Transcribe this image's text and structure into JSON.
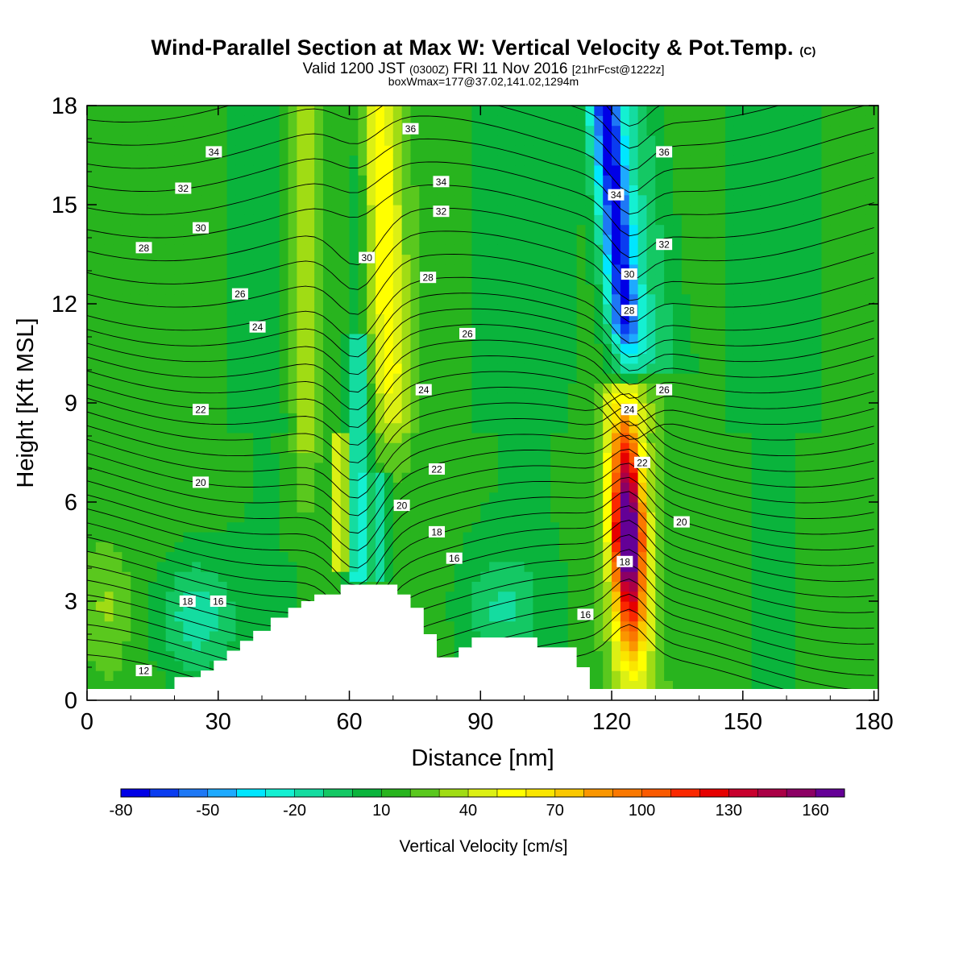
{
  "header": {
    "title": "Wind-Parallel Section at Max W: Vertical Velocity & Pot.Temp.",
    "copyright": "(C)",
    "valid_prefix": "Valid 1200 JST",
    "valid_utc": "(0300Z)",
    "valid_date": "FRI 11 Nov 2016",
    "valid_fcst": "[21hrFcst@1222z]",
    "box_info": "boxWmax=177@37.02,141.02,1294m"
  },
  "chart_data": {
    "type": "heatmap",
    "title": "Wind-Parallel Section at Max W: Vertical Velocity & Pot.Temp.",
    "xlabel": "Distance [nm]",
    "ylabel": "Height [Kft MSL]",
    "xlim": [
      0,
      181
    ],
    "ylim": [
      0,
      18
    ],
    "x_ticks": [
      "0",
      "30",
      "60",
      "90",
      "120",
      "150",
      "180"
    ],
    "y_ticks": [
      "0",
      "3",
      "6",
      "9",
      "12",
      "15",
      "18"
    ],
    "colorbar": {
      "title": "Vertical Velocity [cm/s]",
      "min": -80,
      "max": 180,
      "step": 10,
      "tick_labels": [
        "-80",
        "-50",
        "-20",
        "10",
        "40",
        "70",
        "100",
        "130",
        "160"
      ],
      "colors": [
        "#0000e6",
        "#0a3cf0",
        "#1e78f5",
        "#1eaaff",
        "#00e6ff",
        "#14f0d2",
        "#14dca0",
        "#14c864",
        "#0ab43c",
        "#28b41e",
        "#5ac81e",
        "#a0dc14",
        "#dcf014",
        "#ffff00",
        "#fae600",
        "#fac800",
        "#fa9600",
        "#fa7800",
        "#fa5a00",
        "#fa2800",
        "#e60000",
        "#c8002d",
        "#aa0046",
        "#8c0064",
        "#640096"
      ]
    },
    "vertical_velocity_features": [
      {
        "x": 50,
        "ymin": 9,
        "ymax": 18,
        "w_cms": 40
      },
      {
        "x": 69,
        "ymin": 11,
        "ymax": 18,
        "w_cms": 50
      },
      {
        "x": 62,
        "ymin": 4,
        "ymax": 11,
        "w_cms": -30
      },
      {
        "x": 58,
        "ymin": 4,
        "ymax": 8,
        "w_cms": 60
      },
      {
        "x": 124,
        "ymin": 1,
        "ymax": 9,
        "w_cms": 177
      },
      {
        "x": 122,
        "ymin": 10,
        "ymax": 18,
        "w_cms": -60
      }
    ],
    "theta_contours_c": [
      "12",
      "16",
      "18",
      "20",
      "22",
      "24",
      "26",
      "28",
      "30",
      "32",
      "34",
      "36"
    ],
    "contour_labels": [
      {
        "text": "12",
        "x": 13,
        "y": 0.9
      },
      {
        "text": "18",
        "x": 23,
        "y": 3.0
      },
      {
        "text": "16",
        "x": 30,
        "y": 3.0
      },
      {
        "text": "20",
        "x": 26,
        "y": 6.6
      },
      {
        "text": "22",
        "x": 26,
        "y": 8.8
      },
      {
        "text": "24",
        "x": 39,
        "y": 11.3
      },
      {
        "text": "26",
        "x": 35,
        "y": 12.3
      },
      {
        "text": "28",
        "x": 13,
        "y": 13.7
      },
      {
        "text": "30",
        "x": 26,
        "y": 14.3
      },
      {
        "text": "32",
        "x": 22,
        "y": 15.5
      },
      {
        "text": "34",
        "x": 29,
        "y": 16.6
      },
      {
        "text": "36",
        "x": 74,
        "y": 17.3
      },
      {
        "text": "34",
        "x": 81,
        "y": 15.7
      },
      {
        "text": "32",
        "x": 81,
        "y": 14.8
      },
      {
        "text": "30",
        "x": 64,
        "y": 13.4
      },
      {
        "text": "28",
        "x": 78,
        "y": 12.8
      },
      {
        "text": "26",
        "x": 87,
        "y": 11.1
      },
      {
        "text": "24",
        "x": 77,
        "y": 9.4
      },
      {
        "text": "22",
        "x": 80,
        "y": 7.0
      },
      {
        "text": "20",
        "x": 72,
        "y": 5.9
      },
      {
        "text": "18",
        "x": 80,
        "y": 5.1
      },
      {
        "text": "16",
        "x": 84,
        "y": 4.3
      },
      {
        "text": "16",
        "x": 114,
        "y": 2.6
      },
      {
        "text": "18",
        "x": 123,
        "y": 4.2
      },
      {
        "text": "20",
        "x": 136,
        "y": 5.4
      },
      {
        "text": "22",
        "x": 127,
        "y": 7.2
      },
      {
        "text": "24",
        "x": 124,
        "y": 8.8
      },
      {
        "text": "26",
        "x": 132,
        "y": 9.4
      },
      {
        "text": "28",
        "x": 124,
        "y": 11.8
      },
      {
        "text": "30",
        "x": 124,
        "y": 12.9
      },
      {
        "text": "32",
        "x": 132,
        "y": 13.8
      },
      {
        "text": "34",
        "x": 121,
        "y": 15.3
      },
      {
        "text": "36",
        "x": 132,
        "y": 16.6
      }
    ],
    "terrain_profile": [
      [
        0,
        0.3
      ],
      [
        10,
        0.3
      ],
      [
        20,
        0.3
      ],
      [
        20,
        0.7
      ],
      [
        26,
        0.7
      ],
      [
        26,
        0.9
      ],
      [
        29,
        0.9
      ],
      [
        29,
        1.2
      ],
      [
        32,
        1.2
      ],
      [
        32,
        1.5
      ],
      [
        35,
        1.5
      ],
      [
        35,
        1.8
      ],
      [
        38,
        1.8
      ],
      [
        38,
        2.1
      ],
      [
        42,
        2.1
      ],
      [
        42,
        2.5
      ],
      [
        46,
        2.5
      ],
      [
        46,
        2.8
      ],
      [
        49,
        2.8
      ],
      [
        49,
        3.0
      ],
      [
        52,
        3.0
      ],
      [
        52,
        3.2
      ],
      [
        58,
        3.2
      ],
      [
        58,
        3.5
      ],
      [
        71,
        3.5
      ],
      [
        71,
        3.2
      ],
      [
        74,
        3.2
      ],
      [
        74,
        2.8
      ],
      [
        77,
        2.8
      ],
      [
        77,
        2.0
      ],
      [
        80,
        2.0
      ],
      [
        80,
        1.3
      ],
      [
        85,
        1.3
      ],
      [
        85,
        1.6
      ],
      [
        88,
        1.6
      ],
      [
        88,
        1.9
      ],
      [
        103,
        1.9
      ],
      [
        103,
        1.6
      ],
      [
        112,
        1.6
      ],
      [
        112,
        1.0
      ],
      [
        115,
        1.0
      ],
      [
        115,
        0.3
      ],
      [
        181,
        0.3
      ]
    ]
  }
}
